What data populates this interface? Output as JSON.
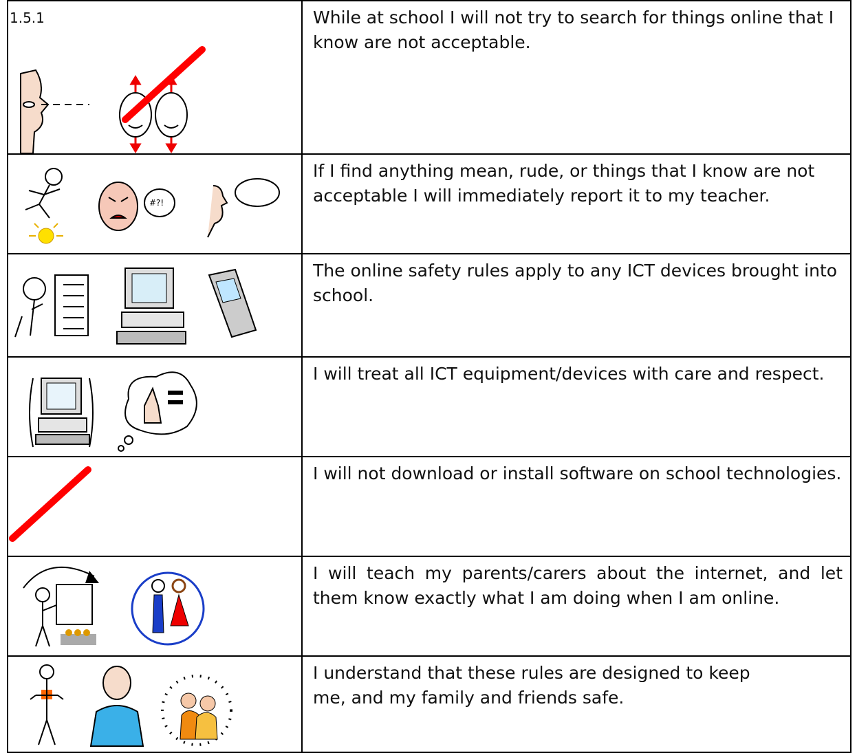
{
  "table": {
    "rows": [
      {
        "label": "1.5.1",
        "text": "While at school I will not try to search for things online that I know are not acceptable."
      },
      {
        "text": "If I find anything mean, rude, or things that I know are not acceptable I will immediately report it to my teacher."
      },
      {
        "text": "The online safety rules apply to any ICT devices brought into school."
      },
      {
        "text": "I will treat all ICT equipment/devices with care and respect."
      },
      {
        "text": "I will not download or install software on school technologies."
      },
      {
        "text": "I will teach my parents/carers about the internet, and let them know exactly what I am doing when I am online."
      },
      {
        "text": "I understand that these rules are designed to keep me, and my family and friends safe."
      }
    ]
  }
}
